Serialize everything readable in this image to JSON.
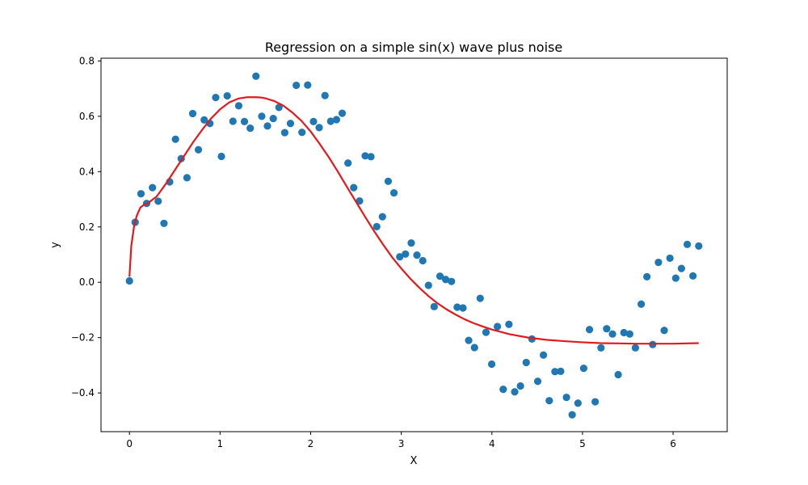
{
  "chart_data": {
    "type": "scatter",
    "title": "Regression on a simple sin(x) wave plus noise",
    "xlabel": "X",
    "ylabel": "y",
    "xlim": [
      -0.314,
      6.597
    ],
    "ylim": [
      -0.54,
      0.81
    ],
    "xticks": [
      0,
      1,
      2,
      3,
      4,
      5,
      6
    ],
    "yticks": [
      -0.4,
      -0.2,
      0.0,
      0.2,
      0.4,
      0.6,
      0.8
    ],
    "ytick_labels": [
      "−0.4",
      "−0.2",
      "0.0",
      "0.2",
      "0.4",
      "0.6",
      "0.8"
    ],
    "grid": false,
    "colors": {
      "points": "#1f77b4",
      "fit": "#e31a1c"
    },
    "series": [
      {
        "kind": "scatter",
        "x": [
          0.0,
          0.063,
          0.127,
          0.19,
          0.254,
          0.317,
          0.381,
          0.444,
          0.508,
          0.571,
          0.635,
          0.698,
          0.761,
          0.825,
          0.888,
          0.952,
          1.015,
          1.079,
          1.142,
          1.206,
          1.269,
          1.333,
          1.396,
          1.46,
          1.523,
          1.587,
          1.65,
          1.714,
          1.777,
          1.841,
          1.904,
          1.967,
          2.031,
          2.094,
          2.158,
          2.221,
          2.285,
          2.348,
          2.412,
          2.475,
          2.539,
          2.602,
          2.665,
          2.729,
          2.792,
          2.856,
          2.919,
          2.983,
          3.046,
          3.11,
          3.173,
          3.237,
          3.3,
          3.363,
          3.427,
          3.49,
          3.554,
          3.617,
          3.681,
          3.744,
          3.808,
          3.871,
          3.935,
          3.998,
          4.061,
          4.125,
          4.188,
          4.252,
          4.315,
          4.379,
          4.442,
          4.506,
          4.569,
          4.633,
          4.696,
          4.759,
          4.823,
          4.886,
          4.95,
          5.013,
          5.077,
          5.14,
          5.204,
          5.267,
          5.331,
          5.394,
          5.457,
          5.521,
          5.584,
          5.648,
          5.711,
          5.775,
          5.838,
          5.902,
          5.965,
          6.029,
          6.092,
          6.156,
          6.219,
          6.283
        ],
        "y": [
          0.005,
          0.217,
          0.32,
          0.285,
          0.342,
          0.293,
          0.213,
          0.363,
          0.517,
          0.447,
          0.378,
          0.61,
          0.479,
          0.587,
          0.574,
          0.668,
          0.455,
          0.674,
          0.582,
          0.638,
          0.581,
          0.557,
          0.745,
          0.6,
          0.565,
          0.592,
          0.632,
          0.541,
          0.574,
          0.712,
          0.542,
          0.713,
          0.581,
          0.559,
          0.675,
          0.582,
          0.588,
          0.611,
          0.431,
          0.342,
          0.294,
          0.457,
          0.454,
          0.201,
          0.237,
          0.365,
          0.323,
          0.092,
          0.102,
          0.142,
          0.098,
          0.078,
          -0.011,
          -0.088,
          0.022,
          0.01,
          0.003,
          -0.09,
          -0.093,
          -0.21,
          -0.236,
          -0.058,
          -0.181,
          -0.296,
          -0.16,
          -0.387,
          -0.152,
          -0.396,
          -0.375,
          -0.29,
          -0.205,
          -0.358,
          -0.263,
          -0.428,
          -0.323,
          -0.322,
          -0.416,
          -0.479,
          -0.437,
          -0.311,
          -0.171,
          -0.432,
          -0.237,
          -0.168,
          -0.187,
          -0.334,
          -0.182,
          -0.187,
          -0.237,
          -0.079,
          0.02,
          -0.225,
          0.072,
          -0.174,
          0.087,
          0.015,
          0.05,
          0.137,
          0.023,
          0.131
        ]
      },
      {
        "kind": "line",
        "x": [
          0.0,
          0.02,
          0.05,
          0.08,
          0.12,
          0.16,
          0.2,
          0.3,
          0.4,
          0.5,
          0.6,
          0.7,
          0.8,
          0.9,
          1.0,
          1.1,
          1.2,
          1.3,
          1.4,
          1.45,
          1.5,
          1.6,
          1.7,
          1.8,
          1.9,
          2.0,
          2.1,
          2.2,
          2.3,
          2.4,
          2.5,
          2.6,
          2.7,
          2.8,
          2.9,
          3.0,
          3.1,
          3.2,
          3.3,
          3.4,
          3.5,
          3.6,
          3.7,
          3.8,
          3.9,
          4.0,
          4.2,
          4.4,
          4.6,
          4.8,
          5.0,
          5.2,
          5.4,
          5.6,
          5.8,
          6.0,
          6.283
        ],
        "y": [
          0.02,
          0.13,
          0.2,
          0.24,
          0.27,
          0.28,
          0.285,
          0.31,
          0.355,
          0.405,
          0.455,
          0.505,
          0.55,
          0.592,
          0.625,
          0.65,
          0.664,
          0.669,
          0.669,
          0.668,
          0.665,
          0.655,
          0.638,
          0.613,
          0.583,
          0.545,
          0.5,
          0.452,
          0.4,
          0.345,
          0.291,
          0.237,
          0.185,
          0.136,
          0.09,
          0.05,
          0.013,
          -0.02,
          -0.05,
          -0.076,
          -0.098,
          -0.117,
          -0.134,
          -0.148,
          -0.16,
          -0.171,
          -0.188,
          -0.2,
          -0.208,
          -0.213,
          -0.217,
          -0.22,
          -0.221,
          -0.222,
          -0.222,
          -0.222,
          -0.22
        ]
      }
    ]
  }
}
